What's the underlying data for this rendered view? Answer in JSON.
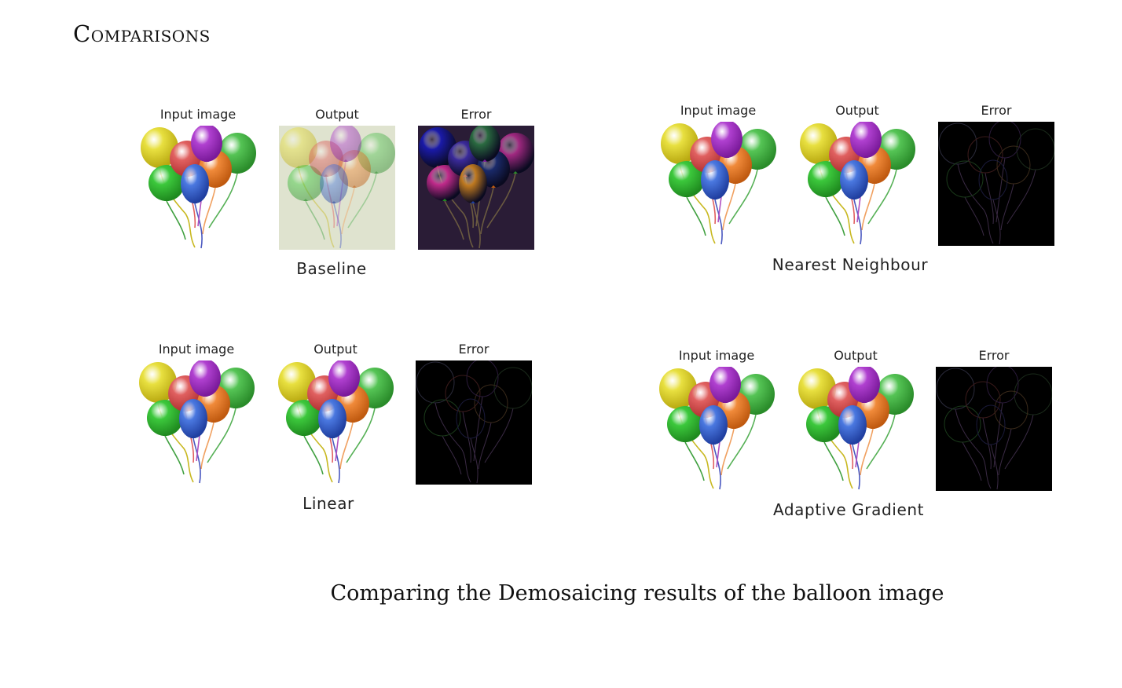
{
  "title": "Comparisons",
  "caption": "Comparing the Demosaicing results of the balloon image",
  "panels": [
    {
      "method": "Baseline",
      "input_label": "Input image",
      "output_label": "Output",
      "error_label": "Error"
    },
    {
      "method": "Nearest Neighbour",
      "input_label": "Input image",
      "output_label": "Output",
      "error_label": "Error"
    },
    {
      "method": "Linear",
      "input_label": "Input image",
      "output_label": "Output",
      "error_label": "Error"
    },
    {
      "method": "Adaptive Gradient",
      "input_label": "Input image",
      "output_label": "Output",
      "error_label": "Error"
    }
  ]
}
